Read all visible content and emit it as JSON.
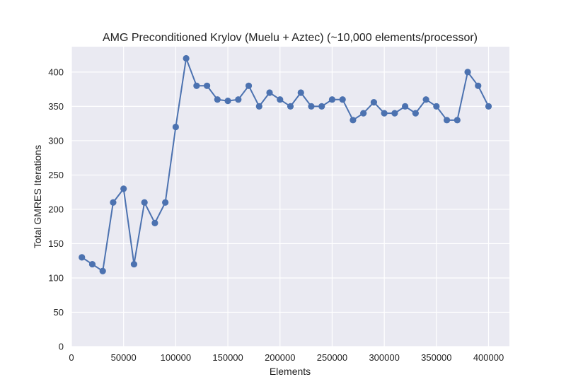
{
  "chart_data": {
    "type": "line",
    "title": "AMG Preconditioned Krylov (Muelu + Aztec) (~10,000 elements/processor)",
    "xlabel": "Elements",
    "ylabel": "Total GMRES Iterations",
    "xlim": [
      0,
      420000
    ],
    "ylim": [
      0,
      437
    ],
    "x_ticks": [
      0,
      50000,
      100000,
      150000,
      200000,
      250000,
      300000,
      350000,
      400000
    ],
    "y_ticks": [
      0,
      50,
      100,
      150,
      200,
      250,
      300,
      350,
      400
    ],
    "grid": true,
    "series": [
      {
        "color": "#4c72b0",
        "x": [
          10000,
          20000,
          30000,
          40000,
          50000,
          60000,
          70000,
          80000,
          90000,
          100000,
          110000,
          120000,
          130000,
          140000,
          150000,
          160000,
          170000,
          180000,
          190000,
          200000,
          210000,
          220000,
          230000,
          240000,
          250000,
          260000,
          270000,
          280000,
          290000,
          300000,
          310000,
          320000,
          330000,
          340000,
          350000,
          360000,
          370000,
          380000,
          390000,
          400000
        ],
        "y": [
          130,
          120,
          110,
          210,
          230,
          120,
          210,
          180,
          210,
          320,
          420,
          380,
          380,
          360,
          358,
          360,
          380,
          350,
          370,
          360,
          350,
          370,
          350,
          350,
          360,
          360,
          330,
          340,
          356,
          340,
          340,
          350,
          340,
          360,
          350,
          330,
          330,
          400,
          380,
          350
        ]
      }
    ]
  },
  "colors": {
    "plot_background": "#eaeaf2",
    "grid": "#ffffff",
    "line": "#4c72b0"
  }
}
